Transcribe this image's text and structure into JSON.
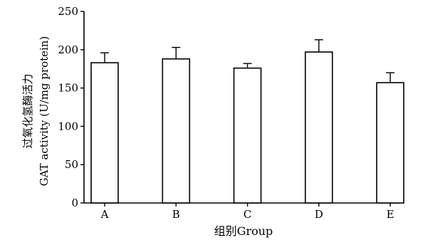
{
  "chart_data": {
    "type": "bar",
    "categories": [
      "A",
      "B",
      "C",
      "D",
      "E"
    ],
    "values": [
      183,
      188,
      176,
      197,
      157
    ],
    "errors": [
      13,
      15,
      6,
      16,
      13
    ],
    "xlabel": "组别Group",
    "ylabel_line1": "过氧化氢酶活力",
    "ylabel_line2": "GAT activity (U/mg protein)",
    "ylim": [
      0,
      250
    ],
    "yticks": [
      0,
      50,
      100,
      150,
      200,
      250
    ],
    "ytick_labels": [
      "0",
      "50",
      "100",
      "150",
      "200",
      "250"
    ],
    "grid": false,
    "bar_fill": "#ffffff",
    "bar_stroke": "#000000"
  }
}
